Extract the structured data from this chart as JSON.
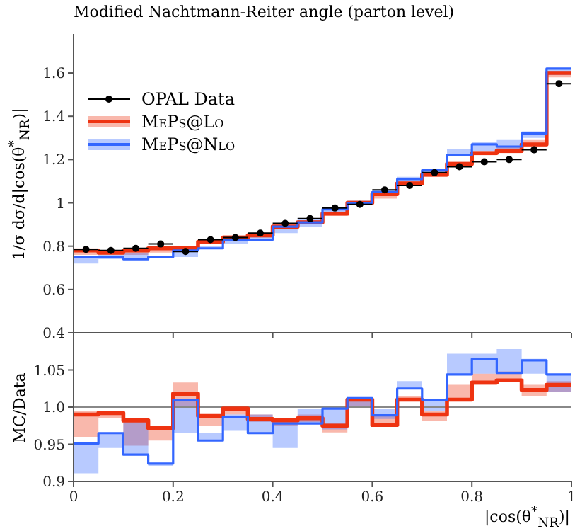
{
  "chart_data": [
    {
      "type": "step",
      "title": "Modified Nachtmann-Reiter angle (parton level)",
      "ylabel": "1/σ dσ/d|cos(θ$^{*}$$_{NR}$)|",
      "xlim": [
        0,
        1
      ],
      "ylim": [
        0.4,
        1.78
      ],
      "yticks": [
        0.4,
        0.6,
        0.8,
        1,
        1.2,
        1.4,
        1.6
      ],
      "xticks": [
        0,
        0.2,
        0.4,
        0.6,
        0.8,
        1
      ],
      "tick_labels": "y",
      "legend": "top left",
      "series": [
        {
          "name": "OPAL Data",
          "type": "scatter",
          "marker": "circle",
          "color": "#000000",
          "x": [
            0.025,
            0.075,
            0.125,
            0.175,
            0.225,
            0.275,
            0.325,
            0.375,
            0.425,
            0.475,
            0.525,
            0.575,
            0.625,
            0.675,
            0.725,
            0.775,
            0.825,
            0.875,
            0.925,
            0.975
          ],
          "values": [
            0.785,
            0.78,
            0.79,
            0.81,
            0.775,
            0.83,
            0.84,
            0.86,
            0.905,
            0.927,
            0.976,
            0.993,
            1.06,
            1.08,
            1.14,
            1.167,
            1.19,
            1.2,
            1.245,
            1.55
          ],
          "xerrors": [
            0.025,
            0.025,
            0.025,
            0.025,
            0.025,
            0.025,
            0.025,
            0.025,
            0.025,
            0.025,
            0.025,
            0.025,
            0.025,
            0.025,
            0.025,
            0.025,
            0.025,
            0.025,
            0.025,
            0.025
          ]
        },
        {
          "name": "MePs@Lo",
          "color": "#ee3311",
          "x": [
            0,
            0.05,
            0.1,
            0.15,
            0.2,
            0.25,
            0.3,
            0.35,
            0.4,
            0.45,
            0.5,
            0.55,
            0.6,
            0.65,
            0.7,
            0.75,
            0.8,
            0.85,
            0.9,
            0.95,
            1
          ],
          "values": [
            0.78,
            0.77,
            0.78,
            0.79,
            0.79,
            0.82,
            0.84,
            0.85,
            0.89,
            0.91,
            0.95,
            1.0,
            1.04,
            1.09,
            1.13,
            1.18,
            1.23,
            1.24,
            1.27,
            1.6,
            1.6
          ],
          "lower": [
            0.76,
            0.76,
            0.76,
            0.77,
            0.78,
            0.81,
            0.83,
            0.84,
            0.88,
            0.9,
            0.94,
            0.99,
            1.02,
            1.08,
            1.12,
            1.17,
            1.22,
            1.23,
            1.26,
            1.58,
            1.58
          ],
          "upper": [
            0.79,
            0.78,
            0.79,
            0.8,
            0.8,
            0.83,
            0.85,
            0.86,
            0.9,
            0.92,
            0.96,
            1.01,
            1.05,
            1.1,
            1.14,
            1.19,
            1.24,
            1.26,
            1.29,
            1.61,
            1.61
          ]
        },
        {
          "name": "MePs@Nlo",
          "color": "#3366ff",
          "x": [
            0,
            0.05,
            0.1,
            0.15,
            0.2,
            0.25,
            0.3,
            0.35,
            0.4,
            0.45,
            0.5,
            0.55,
            0.6,
            0.65,
            0.7,
            0.75,
            0.8,
            0.85,
            0.9,
            0.95,
            1
          ],
          "values": [
            0.75,
            0.75,
            0.74,
            0.75,
            0.78,
            0.79,
            0.83,
            0.83,
            0.89,
            0.91,
            0.97,
            1.0,
            1.05,
            1.11,
            1.15,
            1.22,
            1.27,
            1.26,
            1.32,
            1.62,
            1.62
          ],
          "lower": [
            0.72,
            0.74,
            0.74,
            0.75,
            0.75,
            0.79,
            0.81,
            0.83,
            0.86,
            0.89,
            0.95,
            0.99,
            1.04,
            1.1,
            1.13,
            1.22,
            1.24,
            1.25,
            1.3,
            1.59,
            1.59
          ],
          "upper": [
            0.75,
            0.76,
            0.77,
            0.75,
            0.79,
            0.8,
            0.83,
            0.85,
            0.89,
            0.93,
            0.98,
            1.01,
            1.06,
            1.12,
            1.15,
            1.25,
            1.28,
            1.29,
            1.33,
            1.62,
            1.62
          ]
        }
      ]
    },
    {
      "type": "step",
      "ylabel": "MC/Data",
      "xlabel": "|cos(θ$^{*}$$_{NR}$)|",
      "xlim": [
        0,
        1
      ],
      "ylim": [
        0.9,
        1.1
      ],
      "yticks": [
        0.9,
        0.95,
        {
          "value": 1,
          "label": "1.0"
        },
        1.05
      ],
      "xticks": [
        0,
        0.2,
        0.4,
        0.6,
        0.8,
        1
      ],
      "legend": false,
      "ref_lines": [
        {
          "axis": "y",
          "value": 1,
          "color": "#888888"
        }
      ],
      "series": [
        {
          "color": "#ee3311",
          "x": [
            0,
            0.05,
            0.1,
            0.15,
            0.2,
            0.25,
            0.3,
            0.35,
            0.4,
            0.45,
            0.5,
            0.55,
            0.6,
            0.65,
            0.7,
            0.75,
            0.8,
            0.85,
            0.9,
            0.95,
            1
          ],
          "values": [
            0.99,
            0.992,
            0.982,
            0.972,
            1.018,
            0.988,
            0.998,
            0.984,
            0.982,
            0.985,
            0.975,
            1.01,
            0.976,
            1.01,
            0.99,
            1.01,
            1.033,
            1.036,
            1.023,
            1.03,
            1.03
          ],
          "lower": [
            0.96,
            0.985,
            0.948,
            0.955,
            1.0,
            0.975,
            0.99,
            0.98,
            0.975,
            0.98,
            0.966,
            1.0,
            0.976,
            1.01,
            0.982,
            1.01,
            1.03,
            1.036,
            1.015,
            1.02,
            1.02
          ],
          "upper": [
            0.995,
            0.995,
            0.982,
            0.972,
            1.033,
            0.988,
            0.998,
            0.99,
            0.985,
            0.99,
            0.978,
            1.01,
            0.99,
            1.015,
            0.995,
            1.03,
            1.045,
            1.048,
            1.03,
            1.035,
            1.035
          ]
        },
        {
          "color": "#3366ff",
          "x": [
            0,
            0.05,
            0.1,
            0.15,
            0.2,
            0.25,
            0.3,
            0.35,
            0.4,
            0.45,
            0.5,
            0.55,
            0.6,
            0.65,
            0.7,
            0.75,
            0.8,
            0.85,
            0.9,
            0.95,
            1
          ],
          "values": [
            0.951,
            0.965,
            0.936,
            0.924,
            1.01,
            0.955,
            0.987,
            0.965,
            0.978,
            0.978,
            0.998,
            1.012,
            0.989,
            1.025,
            1.01,
            1.044,
            1.065,
            1.046,
            1.063,
            1.044,
            1.044
          ],
          "lower": [
            0.911,
            0.945,
            0.936,
            0.921,
            0.965,
            0.955,
            0.968,
            0.965,
            0.945,
            0.978,
            0.97,
            1.0,
            0.984,
            1.025,
            0.995,
            1.044,
            1.045,
            1.046,
            1.045,
            1.02,
            1.02
          ],
          "upper": [
            0.951,
            0.965,
            0.98,
            0.925,
            1.01,
            0.965,
            0.99,
            0.99,
            0.978,
            0.998,
            0.998,
            1.012,
            0.998,
            1.035,
            1.01,
            1.072,
            1.072,
            1.078,
            1.065,
            1.044,
            1.044
          ]
        }
      ]
    }
  ]
}
